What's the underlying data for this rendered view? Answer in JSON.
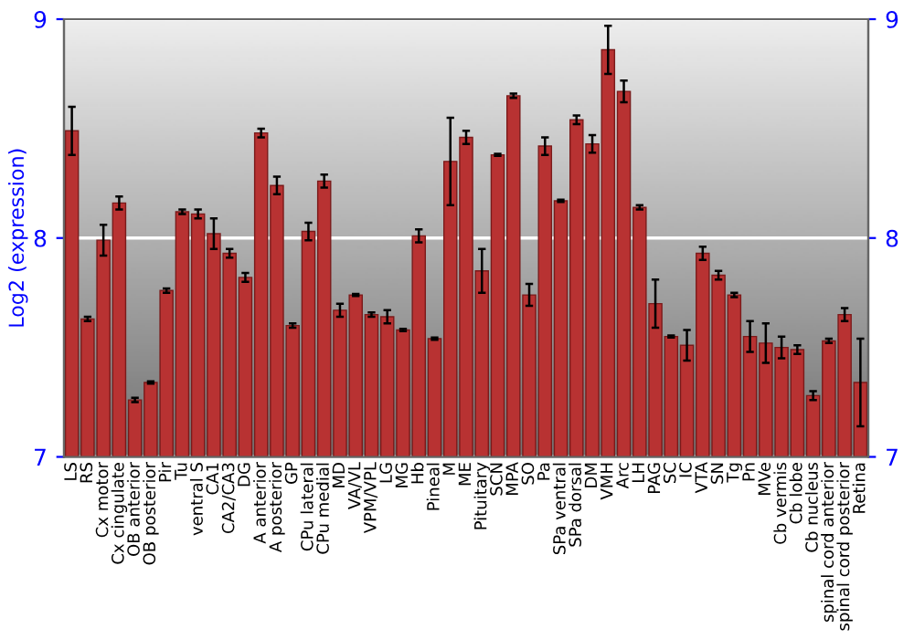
{
  "chart_data": {
    "type": "bar",
    "ylabel": "Log2 (expression)",
    "categories": [
      "LS",
      "RS",
      "Cx motor",
      "Cx cingulate",
      "OB anterior",
      "OB posterior",
      "Pir",
      "Tu",
      "ventral S",
      "CA1",
      "CA2/CA3",
      "DG",
      "A anterior",
      "A posterior",
      "GP",
      "CPu lateral",
      "CPu medial",
      "MD",
      "VA/VL",
      "VPM/VPL",
      "LG",
      "MG",
      "Hb",
      "Pineal",
      "M",
      "ME",
      "Pituitary",
      "SCN",
      "MPA",
      "SO",
      "Pa",
      "SPa ventral",
      "SPa dorsal",
      "DM",
      "VMH",
      "Arc",
      "LH",
      "PAG",
      "SC",
      "IC",
      "VTA",
      "SN",
      "Tg",
      "Pn",
      "MVe",
      "Cb vermis",
      "Cb lobe",
      "Cb nucleus",
      "spinal cord anterior",
      "spinal cord posterior",
      "Retina"
    ],
    "values": [
      8.49,
      7.63,
      7.99,
      8.16,
      7.26,
      7.34,
      7.76,
      8.12,
      8.11,
      8.02,
      7.93,
      7.82,
      8.48,
      8.24,
      7.6,
      8.03,
      8.26,
      7.67,
      7.74,
      7.65,
      7.64,
      7.58,
      8.01,
      7.54,
      8.35,
      8.46,
      7.85,
      8.38,
      8.65,
      7.74,
      8.42,
      8.17,
      8.54,
      8.43,
      8.86,
      8.67,
      8.14,
      7.7,
      7.55,
      7.51,
      7.93,
      7.83,
      7.74,
      7.55,
      7.52,
      7.5,
      7.49,
      7.28,
      7.53,
      7.65,
      7.34
    ],
    "errors": [
      0.11,
      0.01,
      0.07,
      0.03,
      0.01,
      0.005,
      0.01,
      0.01,
      0.02,
      0.07,
      0.02,
      0.02,
      0.02,
      0.04,
      0.01,
      0.04,
      0.03,
      0.03,
      0.005,
      0.01,
      0.03,
      0.005,
      0.03,
      0.005,
      0.2,
      0.03,
      0.1,
      0.005,
      0.01,
      0.05,
      0.04,
      0.005,
      0.02,
      0.04,
      0.11,
      0.05,
      0.01,
      0.11,
      0.005,
      0.07,
      0.03,
      0.02,
      0.01,
      0.07,
      0.09,
      0.05,
      0.02,
      0.02,
      0.01,
      0.03,
      0.2
    ],
    "color": "#b83232",
    "ylim": [
      7,
      9
    ],
    "yticks": [
      7,
      8,
      9
    ],
    "y2lim": [
      7,
      9
    ],
    "y2ticks": [
      7,
      8,
      9
    ],
    "grid": "y"
  }
}
